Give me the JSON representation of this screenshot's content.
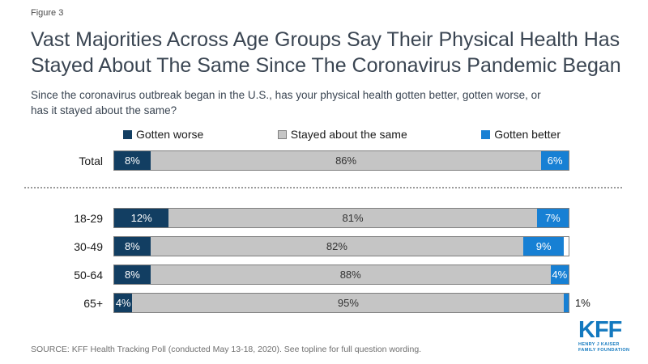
{
  "figure_label": "Figure 3",
  "title_lines": [
    "Vast Majorities Across Age Groups Say Their Physical Health Has",
    "Stayed About The Same Since The Coronavirus Pandemic Began"
  ],
  "subtitle_lines": [
    "Since the coronavirus outbreak began in the U.S., has your physical health gotten better, gotten worse, or",
    "has it stayed about the same?"
  ],
  "source_note": "SOURCE: KFF Health Tracking Poll (conducted May 13-18, 2020). See topline for full question wording.",
  "logo": {
    "text": "KFF",
    "subtext_lines": [
      "HENRY J KAISER",
      "FAMILY FOUNDATION"
    ],
    "color": "#1379BF"
  },
  "colors": {
    "title_text": "#3A4552",
    "navy": "#123E62",
    "gray": "#C5C5C5",
    "gray_border": "#7F7F7F",
    "blue": "#1780D4",
    "source_text": "#6F6F6F"
  },
  "chart_data": {
    "type": "bar",
    "orientation": "horizontal-stacked",
    "unit": "%",
    "xlim": [
      0,
      100
    ],
    "grid": false,
    "legend_position": "top",
    "value_labels": "inside",
    "small_label_outside_threshold": 3,
    "divider_after_category": "Total",
    "categories": [
      "Total",
      "18-29",
      "30-49",
      "50-64",
      "65+"
    ],
    "series": [
      {
        "name": "Gotten worse",
        "color": "#123E62",
        "label_color": "#FFFFFF",
        "values": [
          8,
          12,
          8,
          8,
          4
        ]
      },
      {
        "name": "Stayed about the same",
        "color": "#C5C5C5",
        "border": "#7F7F7F",
        "label_color": "#333333",
        "values": [
          86,
          81,
          82,
          88,
          95
        ]
      },
      {
        "name": "Gotten better",
        "color": "#1780D4",
        "label_color": "#FFFFFF",
        "values": [
          6,
          7,
          9,
          4,
          1
        ]
      }
    ]
  }
}
